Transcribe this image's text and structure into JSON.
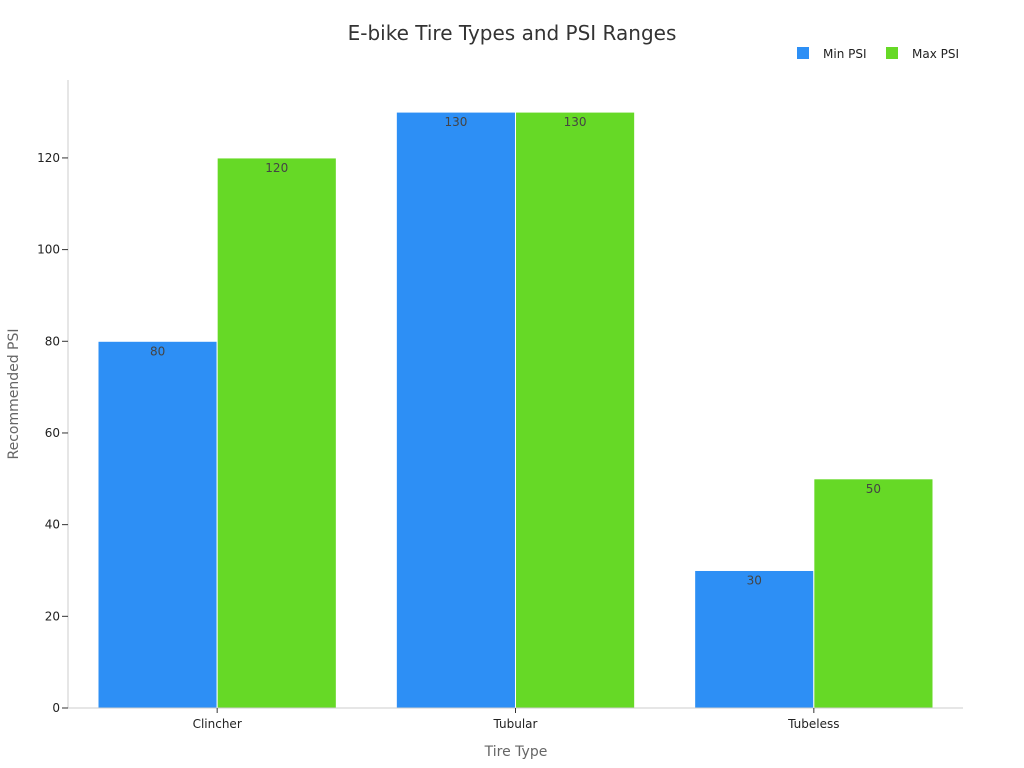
{
  "chart_data": {
    "type": "bar",
    "title": "E-bike Tire Types and PSI Ranges",
    "xlabel": "Tire Type",
    "ylabel": "Recommended PSI",
    "categories": [
      "Clincher",
      "Tubular",
      "Tubeless"
    ],
    "series": [
      {
        "name": "Min PSI",
        "values": [
          80,
          130,
          30
        ],
        "color": "#2d8ff5"
      },
      {
        "name": "Max PSI",
        "values": [
          120,
          130,
          50
        ],
        "color": "#66d926"
      }
    ],
    "ylim": [
      0,
      137
    ],
    "yticks": [
      0,
      20,
      40,
      60,
      80,
      100,
      120
    ],
    "grid": false,
    "legend": "top-right"
  }
}
